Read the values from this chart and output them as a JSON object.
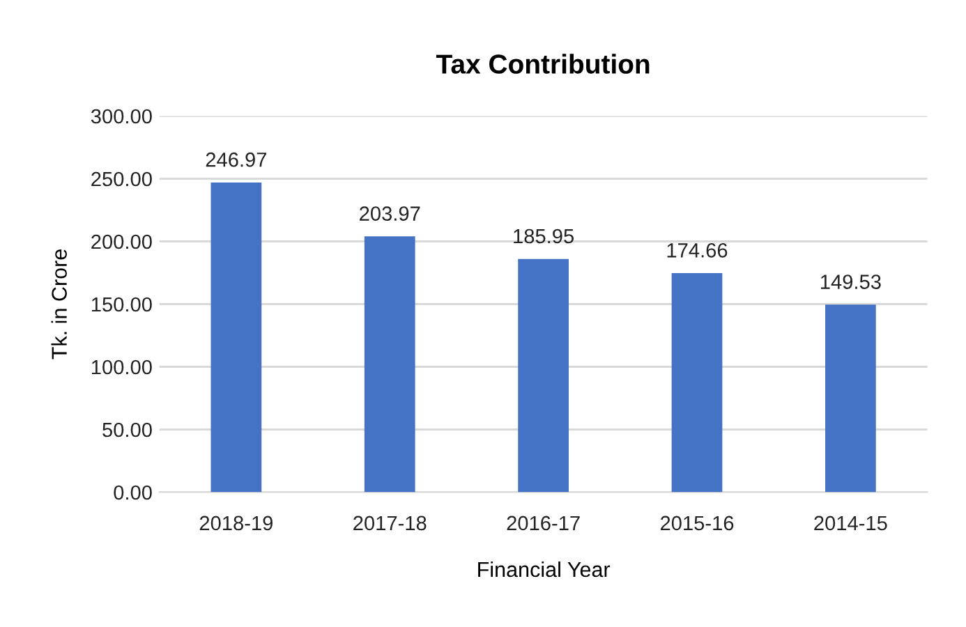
{
  "chart_data": {
    "type": "bar",
    "title": "Tax Contribution",
    "xlabel": "Financial Year",
    "ylabel": "Tk. in Crore",
    "categories": [
      "2018-19",
      "2017-18",
      "2016-17",
      "2015-16",
      "2014-15"
    ],
    "values": [
      246.97,
      203.97,
      185.95,
      174.66,
      149.53
    ],
    "color": "#4472c4",
    "ylim": [
      0,
      300
    ],
    "yticks": [
      {
        "value": 0,
        "label": "0.00"
      },
      {
        "value": 50,
        "label": "50.00"
      },
      {
        "value": 100,
        "label": "100.00"
      },
      {
        "value": 150,
        "label": "150.00"
      },
      {
        "value": 200,
        "label": "200.00"
      },
      {
        "value": 250,
        "label": "250.00"
      },
      {
        "value": 300,
        "label": "300.00"
      }
    ],
    "grid": "y",
    "data_labels": true
  }
}
